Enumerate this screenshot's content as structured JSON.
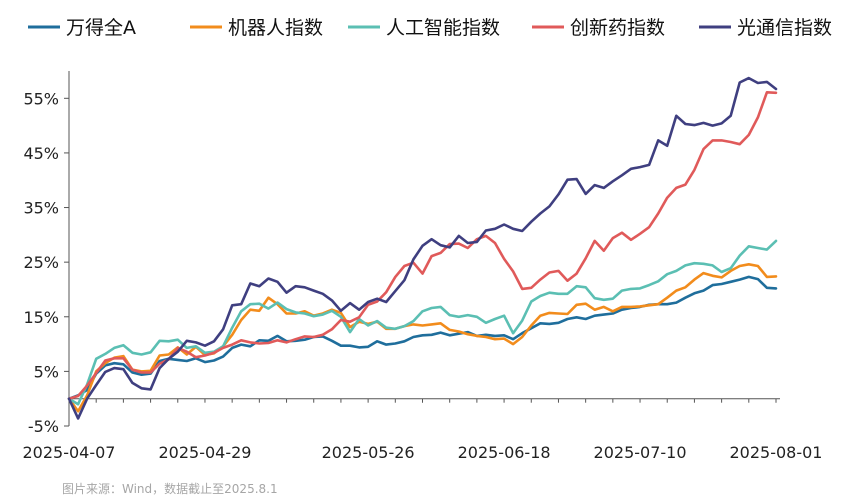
{
  "chart_data": {
    "type": "line",
    "title": "",
    "xlabel": "",
    "ylabel": "",
    "ylim": [
      -5,
      60
    ],
    "yticks": [
      -5,
      5,
      15,
      25,
      35,
      45,
      55
    ],
    "ytick_labels": [
      "-5%",
      "5%",
      "15%",
      "25%",
      "35%",
      "45%",
      "55%"
    ],
    "xtick_labels": [
      "2025-04-07",
      "2025-04-29",
      "2025-05-26",
      "2025-06-18",
      "2025-07-10",
      "2025-08-01"
    ],
    "xtick_index": [
      0,
      15,
      33,
      48,
      63,
      78
    ],
    "n_points": 79,
    "grid": false,
    "legend_position": "top",
    "series": [
      {
        "name": "万得全A",
        "color": "#1f6e9c",
        "values": [
          0,
          0.6,
          1.6,
          4.6,
          6.1,
          6.5,
          6.3,
          4.8,
          4.4,
          4.6,
          6.9,
          7.3,
          7.1,
          6.9,
          7.4,
          6.7,
          7.0,
          7.7,
          9.3,
          9.9,
          9.6,
          10.7,
          10.6,
          11.5,
          10.5,
          10.6,
          10.8,
          11.3,
          11.4,
          10.6,
          9.7,
          9.7,
          9.4,
          9.5,
          10.5,
          9.9,
          10.1,
          10.5,
          11.3,
          11.6,
          11.7,
          12.1,
          11.6,
          11.9,
          12.2,
          11.5,
          11.7,
          11.5,
          11.6,
          10.9,
          12.0,
          12.9,
          13.8,
          13.7,
          13.9,
          14.6,
          14.9,
          14.6,
          15.2,
          15.4,
          15.6,
          16.3,
          16.6,
          16.8,
          17.2,
          17.3,
          17.3,
          17.6,
          18.5,
          19.3,
          19.8,
          20.8,
          21.0,
          21.4,
          21.8,
          22.3,
          21.9,
          20.3,
          20.2
        ]
      },
      {
        "name": "机器人指数",
        "color": "#f28c1c",
        "values": [
          0,
          -2.3,
          0.6,
          5.0,
          6.5,
          7.5,
          7.8,
          5.3,
          5.0,
          5.1,
          7.9,
          8.1,
          9.4,
          8.1,
          9.5,
          8.0,
          8.3,
          9.6,
          11.7,
          14.4,
          16.3,
          16.1,
          18.5,
          17.3,
          15.6,
          15.6,
          16.0,
          15.2,
          15.6,
          16.3,
          15.7,
          13.1,
          14.1,
          13.7,
          14.1,
          12.8,
          12.8,
          13.3,
          13.6,
          13.4,
          13.6,
          13.8,
          12.6,
          12.3,
          11.8,
          11.5,
          11.3,
          10.9,
          11.0,
          10.0,
          11.3,
          13.4,
          15.2,
          15.7,
          15.6,
          15.5,
          17.2,
          17.4,
          16.3,
          16.8,
          16.0,
          16.8,
          16.8,
          16.9,
          17.1,
          17.3,
          18.5,
          19.8,
          20.4,
          21.8,
          23.0,
          22.5,
          22.2,
          23.4,
          24.3,
          24.6,
          24.3,
          22.3,
          22.4
        ]
      },
      {
        "name": "人工智能指数",
        "color": "#5bbfb3",
        "values": [
          0,
          -1.0,
          2.6,
          7.3,
          8.2,
          9.3,
          9.8,
          8.4,
          8.1,
          8.5,
          10.6,
          10.5,
          10.8,
          9.3,
          9.6,
          8.4,
          8.6,
          9.6,
          13.0,
          16.0,
          17.3,
          17.4,
          16.5,
          17.6,
          16.4,
          15.8,
          15.6,
          15.1,
          15.4,
          16.1,
          15.0,
          12.2,
          14.6,
          13.4,
          14.2,
          13.0,
          12.8,
          13.3,
          14.2,
          16.0,
          16.6,
          16.8,
          15.3,
          15.0,
          15.3,
          15.0,
          13.9,
          14.6,
          15.2,
          12.0,
          14.3,
          17.8,
          18.8,
          19.4,
          19.2,
          19.2,
          20.6,
          20.4,
          18.4,
          18.1,
          18.3,
          19.8,
          20.1,
          20.2,
          20.8,
          21.5,
          22.8,
          23.4,
          24.4,
          24.8,
          24.7,
          24.4,
          23.2,
          23.9,
          26.2,
          27.9,
          27.6,
          27.3,
          28.9
        ]
      },
      {
        "name": "创新药指数",
        "color": "#e05a5a",
        "values": [
          0,
          0.5,
          2.4,
          4.7,
          7.0,
          7.4,
          7.4,
          5.3,
          4.8,
          4.8,
          6.4,
          7.2,
          9.3,
          8.6,
          7.6,
          7.9,
          8.4,
          9.3,
          9.9,
          10.7,
          10.3,
          10.1,
          10.2,
          10.7,
          10.3,
          10.9,
          11.4,
          11.3,
          11.7,
          12.7,
          14.4,
          14.1,
          14.9,
          17.2,
          17.8,
          19.5,
          22.3,
          24.3,
          24.9,
          22.9,
          26.1,
          26.7,
          28.3,
          28.4,
          27.6,
          29.2,
          29.8,
          28.5,
          25.6,
          23.3,
          20.1,
          20.3,
          21.8,
          23.1,
          23.4,
          21.6,
          22.9,
          25.7,
          28.9,
          27.1,
          29.4,
          30.4,
          29.1,
          30.2,
          31.4,
          33.9,
          36.8,
          38.6,
          39.2,
          41.9,
          45.7,
          47.3,
          47.3,
          47.0,
          46.6,
          48.3,
          51.5,
          56.1,
          56.0
        ]
      },
      {
        "name": "光通信指数",
        "color": "#3f3f80",
        "values": [
          0,
          -3.6,
          0,
          2.5,
          4.9,
          5.6,
          5.4,
          2.9,
          1.9,
          1.7,
          5.6,
          7.3,
          8.6,
          10.6,
          10.3,
          9.7,
          10.5,
          12.7,
          17.1,
          17.3,
          21.1,
          20.6,
          22.0,
          21.4,
          19.4,
          20.6,
          20.4,
          19.8,
          19.2,
          18.0,
          16.1,
          17.5,
          16.3,
          17.7,
          18.3,
          17.7,
          19.7,
          21.7,
          25.5,
          28.0,
          29.2,
          28.1,
          27.7,
          29.8,
          28.5,
          28.7,
          30.8,
          31.1,
          31.9,
          31.1,
          30.7,
          32.4,
          33.9,
          35.2,
          37.4,
          40.1,
          40.2,
          37.5,
          39.1,
          38.6,
          39.8,
          40.9,
          42.1,
          42.4,
          42.8,
          47.3,
          46.3,
          51.8,
          50.3,
          50.1,
          50.5,
          50.0,
          50.4,
          51.8,
          57.9,
          58.7,
          57.8,
          58.0,
          56.7
        ]
      }
    ]
  },
  "footer": {
    "source": "图片来源：Wind，数据截止至2025.8.1"
  }
}
